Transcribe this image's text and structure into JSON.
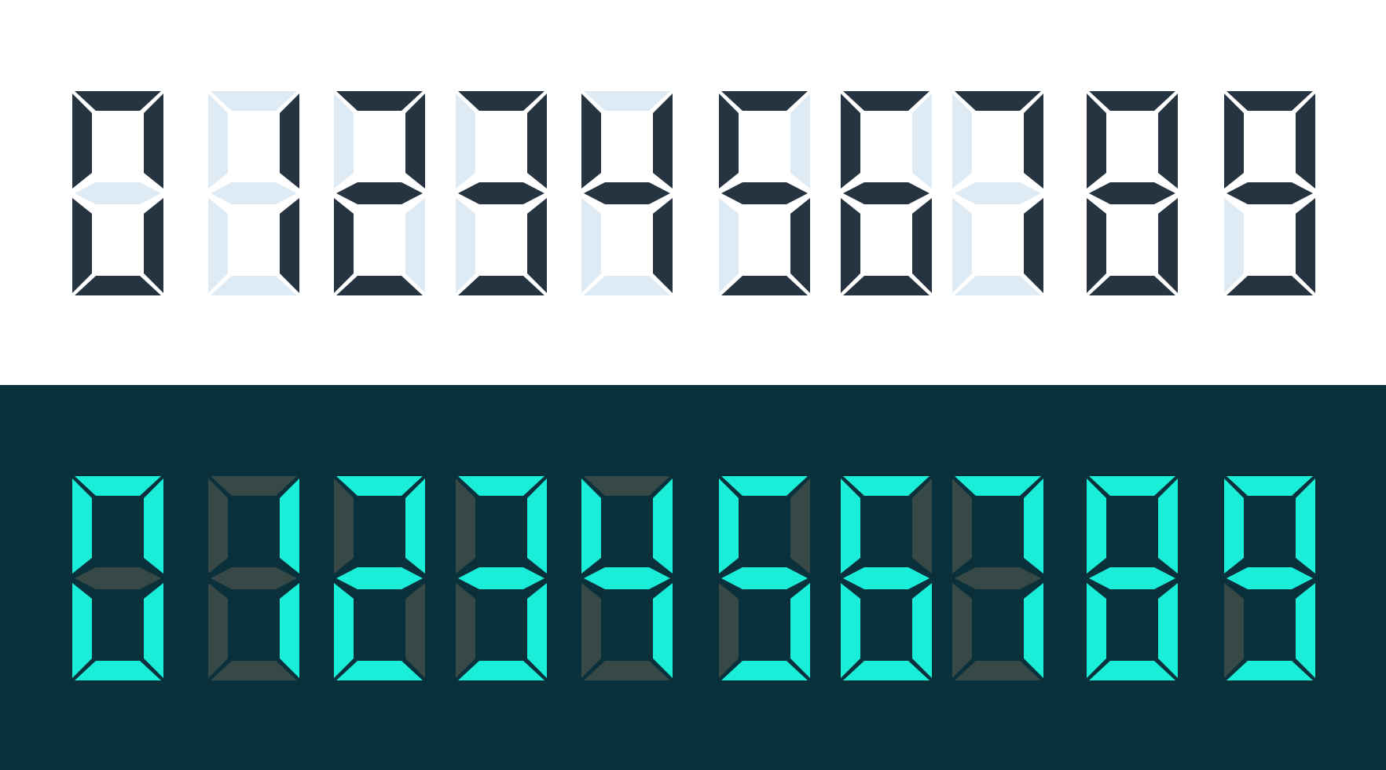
{
  "digits": [
    0,
    1,
    2,
    3,
    4,
    5,
    6,
    7,
    8,
    9
  ],
  "segment_map": {
    "0": [
      1,
      1,
      1,
      1,
      1,
      1,
      0
    ],
    "1": [
      0,
      1,
      1,
      0,
      0,
      0,
      0
    ],
    "2": [
      1,
      1,
      0,
      1,
      1,
      0,
      1
    ],
    "3": [
      1,
      1,
      1,
      1,
      0,
      0,
      1
    ],
    "4": [
      0,
      1,
      1,
      0,
      0,
      1,
      1
    ],
    "5": [
      1,
      0,
      1,
      1,
      0,
      1,
      1
    ],
    "6": [
      1,
      0,
      1,
      1,
      1,
      1,
      1
    ],
    "7": [
      1,
      1,
      1,
      0,
      0,
      0,
      0
    ],
    "8": [
      1,
      1,
      1,
      1,
      1,
      1,
      1
    ],
    "9": [
      1,
      1,
      1,
      1,
      0,
      1,
      1
    ]
  },
  "themes": {
    "light": {
      "background": "#ffffff",
      "segment_on": "#263442",
      "segment_off": "#deebf4"
    },
    "dark": {
      "background": "#09303b",
      "segment_on": "#1aeed8",
      "segment_off": "#364946"
    }
  }
}
